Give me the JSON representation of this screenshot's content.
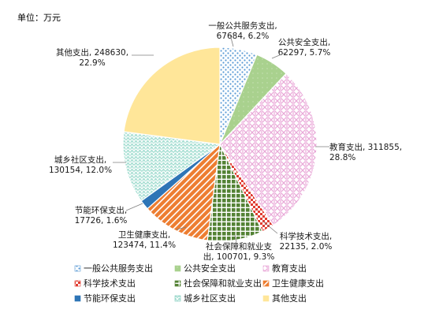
{
  "chart_data": {
    "type": "pie",
    "unit_label": "单位：万元",
    "slices": [
      {
        "name": "一般公共服务支出",
        "value": 67684,
        "percent": "6.2%",
        "color": "#5b9bd5",
        "pattern": "dots",
        "label_lines": [
          "一般公共服务支出,",
          "67684, 6.2%"
        ]
      },
      {
        "name": "公共安全支出",
        "value": 62297,
        "percent": "5.7%",
        "color": "#a9d18e",
        "pattern": "solid-light",
        "label_lines": [
          "公共安全支出,",
          "62297, 5.7%"
        ]
      },
      {
        "name": "教育支出",
        "value": 311855,
        "percent": "28.8%",
        "color": "#e9a8d8",
        "pattern": "plaid",
        "label_lines": [
          "教育支出, 311855,",
          "28.8%"
        ]
      },
      {
        "name": "科学技术支出",
        "value": 22135,
        "percent": "2.0%",
        "color": "#e03c31",
        "pattern": "checker",
        "label_lines": [
          "科学技术支出,",
          "22135, 2.0%"
        ]
      },
      {
        "name": "社会保障和就业支出",
        "value": 100701,
        "percent": "9.3%",
        "color": "#548235",
        "pattern": "grid",
        "label_lines": [
          "社会保障和就业支",
          "出, 100701, 9.3%"
        ]
      },
      {
        "name": "卫生健康支出",
        "value": 123474,
        "percent": "11.4%",
        "color": "#ed7d31",
        "pattern": "diag",
        "label_lines": [
          "卫生健康支出,",
          "123474, 11.4%"
        ]
      },
      {
        "name": "节能环保支出",
        "value": 17726,
        "percent": "1.6%",
        "color": "#2e75b6",
        "pattern": "solid",
        "label_lines": [
          "节能环保支出,",
          "17726, 1.6%"
        ]
      },
      {
        "name": "城乡社区支出",
        "value": 130154,
        "percent": "12.0%",
        "color": "#76c7b7",
        "pattern": "scales",
        "label_lines": [
          "城乡社区支出,",
          "130154, 12.0%"
        ]
      },
      {
        "name": "其他支出",
        "value": 248630,
        "percent": "22.9%",
        "color": "#ffe699",
        "pattern": "solid",
        "label_lines": [
          "其他支出, 248630,",
          "22.9%"
        ]
      }
    ],
    "legend_position": "bottom"
  }
}
